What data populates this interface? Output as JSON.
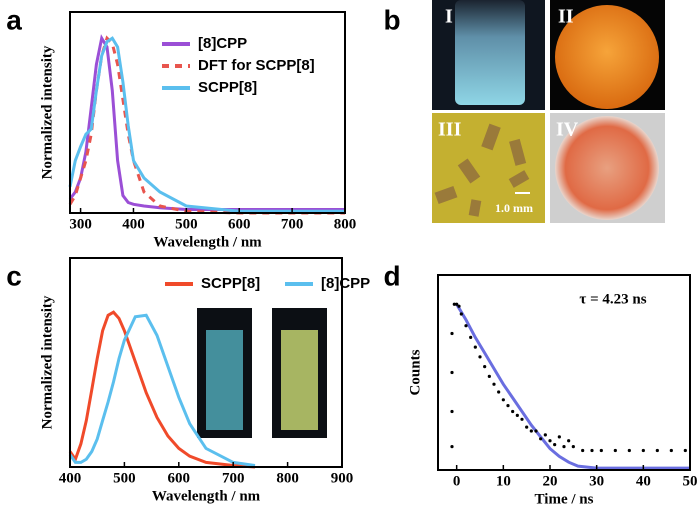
{
  "chart_data": [
    {
      "type": "line",
      "panel_label": "a",
      "xlabel": "Wavelength / nm",
      "ylabel": "Normalized intensity",
      "xlim": [
        280,
        800
      ],
      "ylim": [
        0,
        1.15
      ],
      "xticks": [
        300,
        400,
        500,
        600,
        700,
        800
      ],
      "legend": "upper right",
      "x": [
        280,
        290,
        300,
        310,
        320,
        330,
        340,
        350,
        360,
        370,
        380,
        390,
        400,
        420,
        450,
        500,
        600,
        700,
        800
      ],
      "series": [
        {
          "name": "[8]CPP",
          "color": "#9b4fd6",
          "dashed": false,
          "values": [
            0.08,
            0.12,
            0.2,
            0.35,
            0.6,
            0.85,
            1.0,
            0.95,
            0.7,
            0.3,
            0.1,
            0.06,
            0.05,
            0.04,
            0.03,
            0.02,
            0.02,
            0.02,
            0.02
          ]
        },
        {
          "name": "DFT for SCPP[8]",
          "color": "#e8554e",
          "dashed": true,
          "values": [
            0.05,
            0.1,
            0.2,
            0.3,
            0.45,
            0.7,
            0.9,
            1.0,
            0.97,
            0.85,
            0.65,
            0.45,
            0.3,
            0.12,
            0.04,
            0.01,
            0,
            0,
            0
          ]
        },
        {
          "name": "SCPP[8]",
          "color": "#5bbfee",
          "dashed": false,
          "values": [
            0.15,
            0.3,
            0.38,
            0.45,
            0.48,
            0.7,
            0.9,
            0.98,
            1.0,
            0.95,
            0.75,
            0.5,
            0.3,
            0.2,
            0.12,
            0.04,
            0.01,
            0.01,
            0.01
          ]
        }
      ]
    },
    {
      "type": "line",
      "panel_label": "c",
      "xlabel": "Wavelength / nm",
      "ylabel": "Normalized intensity",
      "xlim": [
        400,
        900
      ],
      "ylim": [
        0,
        1.35
      ],
      "xticks": [
        400,
        500,
        600,
        700,
        800,
        900
      ],
      "legend": "top",
      "x": [
        400,
        410,
        420,
        430,
        440,
        450,
        460,
        470,
        480,
        490,
        500,
        520,
        540,
        560,
        580,
        600,
        620,
        650,
        700,
        740
      ],
      "series": [
        {
          "name": "SCPP[8]",
          "color": "#f04a2a",
          "dashed": false,
          "values": [
            0.1,
            0.05,
            0.15,
            0.3,
            0.5,
            0.7,
            0.88,
            0.98,
            1.0,
            0.96,
            0.88,
            0.68,
            0.48,
            0.32,
            0.2,
            0.12,
            0.07,
            0.03,
            0.01,
            0
          ]
        },
        {
          "name": "[8]CPP",
          "color": "#5bbfee",
          "dashed": false,
          "values": [
            0.08,
            0.03,
            0.03,
            0.05,
            0.1,
            0.18,
            0.3,
            0.42,
            0.55,
            0.7,
            0.82,
            0.97,
            0.98,
            0.85,
            0.65,
            0.45,
            0.28,
            0.12,
            0.03,
            0.01
          ]
        }
      ]
    },
    {
      "type": "scatter",
      "panel_label": "d",
      "xlabel": "Time / ns",
      "ylabel": "Counts",
      "annotation": "τ = 4.23 ns",
      "xlim": [
        -4,
        50
      ],
      "ylim": [
        0,
        1
      ],
      "xticks": [
        0,
        10,
        20,
        30,
        40,
        50
      ],
      "color": "#000000",
      "x": [
        -1,
        -1,
        -1,
        -1,
        -0.5,
        0,
        0.5,
        1,
        2,
        3,
        4,
        5,
        6,
        7,
        8,
        9,
        10,
        11,
        12,
        13,
        14,
        15,
        16,
        17,
        18,
        19,
        20,
        21,
        22,
        23,
        24,
        25,
        27,
        29,
        31,
        34,
        37,
        40,
        43,
        46,
        49
      ],
      "values": [
        0.12,
        0.3,
        0.5,
        0.7,
        0.85,
        0.85,
        0.84,
        0.8,
        0.74,
        0.68,
        0.63,
        0.58,
        0.53,
        0.48,
        0.44,
        0.4,
        0.36,
        0.33,
        0.3,
        0.28,
        0.26,
        0.22,
        0.2,
        0.2,
        0.16,
        0.18,
        0.15,
        0.13,
        0.17,
        0.12,
        0.15,
        0.12,
        0.1,
        0.1,
        0.1,
        0.1,
        0.1,
        0.1,
        0.1,
        0.1,
        0.1
      ],
      "fit": {
        "color": "#6a6ee0",
        "x": [
          0,
          2,
          4,
          6,
          8,
          10,
          12,
          14,
          16,
          18,
          20,
          22,
          24,
          26,
          30,
          40,
          50
        ],
        "values": [
          0.85,
          0.77,
          0.68,
          0.6,
          0.52,
          0.44,
          0.37,
          0.3,
          0.23,
          0.17,
          0.11,
          0.07,
          0.04,
          0.02,
          0.01,
          0.01,
          0.01
        ]
      }
    }
  ],
  "photos": {
    "panel_label": "b",
    "labels": [
      "I",
      "II",
      "III",
      "IV"
    ],
    "scale_bar": "1.0 mm"
  }
}
